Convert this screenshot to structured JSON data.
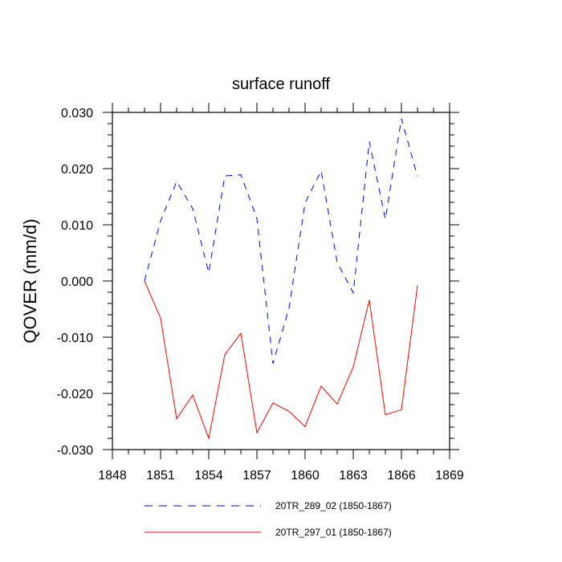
{
  "chart_data": {
    "type": "line",
    "title": "surface runoff",
    "xlabel": "",
    "ylabel": "QOVER  (mm/d)",
    "xlim": [
      1848,
      1869
    ],
    "ylim": [
      -0.03,
      0.03
    ],
    "x_ticks": [
      1848,
      1851,
      1854,
      1857,
      1860,
      1863,
      1866,
      1869
    ],
    "y_ticks": [
      -0.03,
      -0.02,
      -0.01,
      0.0,
      0.01,
      0.02,
      0.03
    ],
    "y_tick_labels": [
      "-0.030",
      "-0.020",
      "-0.010",
      "0.000",
      "0.010",
      "0.020",
      "0.030"
    ],
    "grid": false,
    "legend_position": "bottom",
    "x": [
      1850,
      1851,
      1852,
      1853,
      1854,
      1855,
      1856,
      1857,
      1858,
      1859,
      1860,
      1861,
      1862,
      1863,
      1864,
      1865,
      1866,
      1867
    ],
    "series": [
      {
        "name": "20TR_289_02 (1850-1867)",
        "color": "#0000ff",
        "dash": "dashed",
        "values": [
          0.0,
          0.0107,
          0.0177,
          0.0129,
          0.0015,
          0.0187,
          0.0189,
          0.0111,
          -0.0147,
          -0.0048,
          0.0139,
          0.0196,
          0.0033,
          -0.0021,
          0.0248,
          0.011,
          0.0289,
          0.0186
        ]
      },
      {
        "name": "20TR_297_01 (1850-1867)",
        "color": "#ff0000",
        "dash": "solid",
        "values": [
          0.0,
          -0.0066,
          -0.0245,
          -0.0203,
          -0.028,
          -0.0131,
          -0.0093,
          -0.027,
          -0.0217,
          -0.0232,
          -0.0259,
          -0.0187,
          -0.0219,
          -0.0153,
          -0.0034,
          -0.0238,
          -0.0229,
          -0.0008
        ]
      }
    ]
  }
}
